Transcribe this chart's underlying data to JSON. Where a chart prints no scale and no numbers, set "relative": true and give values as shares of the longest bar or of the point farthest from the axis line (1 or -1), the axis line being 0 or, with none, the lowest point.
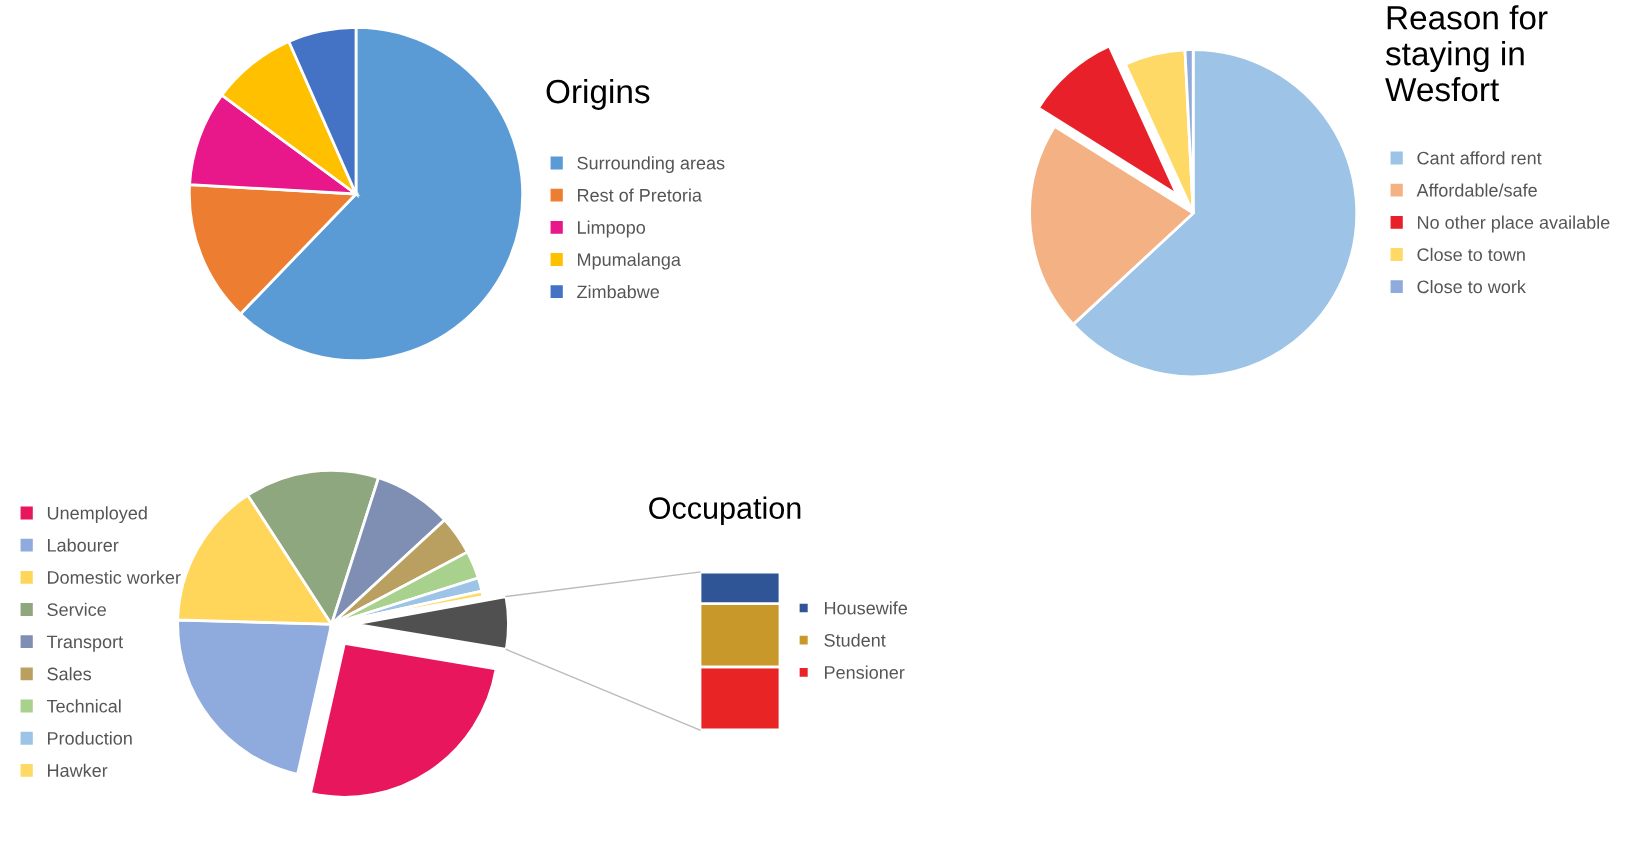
{
  "chart_data": [
    {
      "type": "pie",
      "title": "Origins",
      "legend": "right",
      "categories": [
        "Surrounding areas",
        "Rest of Pretoria",
        "Limpopo",
        "Mpumalanga",
        "Zimbabwe"
      ],
      "values": [
        62.2,
        13.7,
        9.2,
        8.3,
        6.6
      ],
      "colors": [
        "#5b9bd5",
        "#ed7d31",
        "#e8178a",
        "#ffc000",
        "#4472c4"
      ]
    },
    {
      "type": "pie",
      "title": "Occupation",
      "legend": "left",
      "categories": [
        "Unemployed",
        "Labourer",
        "Domestic worker",
        "Service",
        "Transport",
        "Sales",
        "Technical",
        "Production",
        "Hawker",
        null
      ],
      "values": [
        25.9,
        21.9,
        15.4,
        14.1,
        8.2,
        4.1,
        2.9,
        1.4,
        0.6,
        5.5
      ],
      "colors": [
        "#e8175d",
        "#8faadc",
        "#ffd55a",
        "#8ea77e",
        "#7f8fb3",
        "#b9a060",
        "#a9d18e",
        "#9dc3e6",
        "#ffd966",
        "#505050"
      ]
    },
    {
      "type": "pie",
      "title": "Reason for staying in Wesfort",
      "legend": "right",
      "categories": [
        "Cant afford rent",
        "Affordable/safe",
        "No other place available",
        "Close to town",
        "Close to work"
      ],
      "values": [
        63.1,
        20.8,
        9.3,
        6.0,
        0.8
      ],
      "colors": [
        "#9dc3e6",
        "#f4b183",
        "#e8202a",
        "#ffd966",
        "#8faadc"
      ]
    },
    {
      "type": "bar",
      "stacked": true,
      "relative": true,
      "legend": "right",
      "categories": [
        null
      ],
      "series": [
        {
          "name": "Pensioner",
          "color": "#e82424",
          "values": [
            0.4
          ]
        },
        {
          "name": "Student",
          "color": "#c9982a",
          "values": [
            0.4
          ]
        },
        {
          "name": "Housewife",
          "color": "#2f5597",
          "values": [
            0.2
          ]
        }
      ]
    }
  ]
}
